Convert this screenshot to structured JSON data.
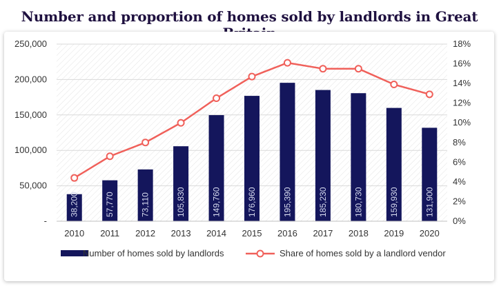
{
  "chart_data": {
    "type": "bar+line",
    "title": "Number and proportion of homes sold by landlords in Great Britain",
    "categories": [
      "2010",
      "2011",
      "2012",
      "2013",
      "2014",
      "2015",
      "2016",
      "2017",
      "2018",
      "2019",
      "2020"
    ],
    "series": [
      {
        "name": "Number of homes sold by landlords",
        "type": "bar",
        "axis": "left",
        "values": [
          38200,
          57770,
          73110,
          105830,
          149760,
          176960,
          195390,
          185230,
          180730,
          159930,
          131900
        ],
        "labels": [
          "38,200",
          "57,770",
          "73,110",
          "105,830",
          "149,760",
          "176,960",
          "195,390",
          "185,230",
          "180,730",
          "159,930",
          "131,900"
        ]
      },
      {
        "name": "Share of homes sold by a landlord vendor",
        "type": "line",
        "axis": "right",
        "values": [
          4.4,
          6.6,
          8.0,
          10.0,
          12.5,
          14.7,
          16.1,
          15.5,
          15.5,
          13.9,
          12.9
        ]
      }
    ],
    "left_axis": {
      "ylim": [
        0,
        250000
      ],
      "ticks": [
        0,
        50000,
        100000,
        150000,
        200000,
        250000
      ],
      "tick_labels": [
        "-",
        "50,000",
        "100,000",
        "150,000",
        "200,000",
        "250,000"
      ]
    },
    "right_axis": {
      "ylim": [
        0,
        18
      ],
      "ticks": [
        0,
        2,
        4,
        6,
        8,
        10,
        12,
        14,
        16,
        18
      ],
      "tick_labels": [
        "0%",
        "2%",
        "4%",
        "6%",
        "8%",
        "10%",
        "12%",
        "14%",
        "16%",
        "18%"
      ]
    },
    "legend_position": "bottom",
    "colors": {
      "bar": "#14165c",
      "line": "#f0605a",
      "marker_fill": "#ffffff",
      "grid": "#d9d9d9"
    }
  }
}
